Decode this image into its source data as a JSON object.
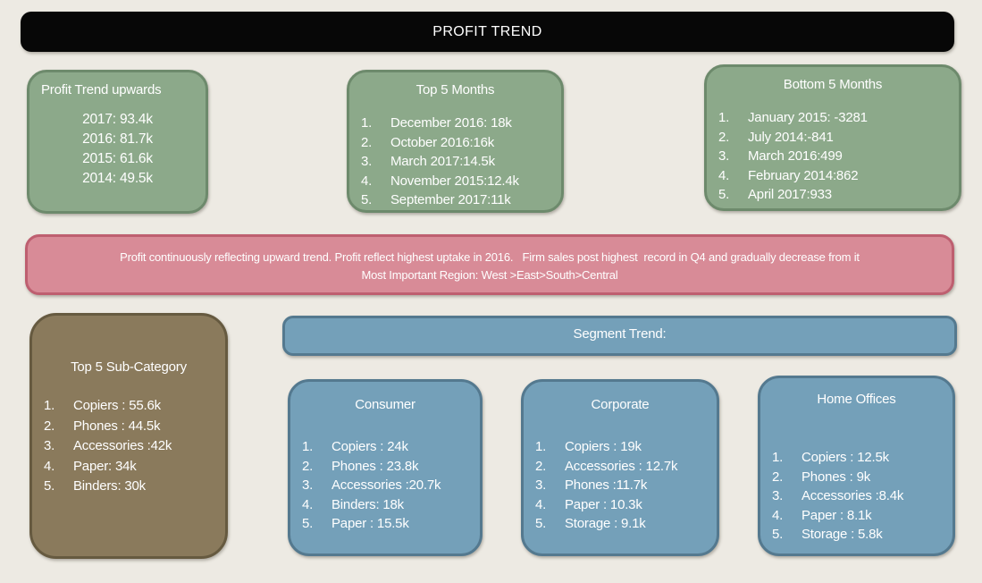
{
  "slide": {
    "title": "PROFIT TREND",
    "yearly_profit": {
      "title": "Profit Trend upwards",
      "lines": [
        "2017: 93.4k",
        "2016: 81.7k",
        "2015: 61.6k",
        "2014: 49.5k"
      ]
    },
    "top_months": {
      "title": "Top 5 Months",
      "items": [
        "December 2016: 18k",
        "October 2016:16k",
        "March 2017:14.5k",
        "November 2015:12.4k",
        "September 2017:11k"
      ]
    },
    "bottom_months": {
      "title": "Bottom 5 Months",
      "items": [
        "January 2015: -3281",
        "July 2014:-841",
        "March 2016:499",
        "February 2014:862",
        "April 2017:933"
      ]
    },
    "summary_banner": {
      "line1": "Profit continuously reflecting upward trend. Profit reflect highest uptake in 2016.   Firm sales post highest  record in Q4 and gradually decrease from it",
      "line2": "Most Important Region: West >East>South>Central"
    },
    "top_subcategory": {
      "title": "Top 5 Sub-Category",
      "items": [
        "Copiers : 55.6k",
        "Phones : 44.5k",
        "Accessories :42k",
        "Paper: 34k",
        "Binders: 30k"
      ]
    },
    "segment_trend": {
      "title": "Segment Trend:"
    },
    "segments": [
      {
        "title": "Consumer",
        "items": [
          "Copiers : 24k",
          "Phones : 23.8k",
          "Accessories :20.7k",
          "Binders: 18k",
          "Paper : 15.5k"
        ]
      },
      {
        "title": "Corporate",
        "items": [
          "Copiers : 19k",
          "Accessories : 12.7k",
          "Phones :11.7k",
          "Paper : 10.3k",
          "Storage : 9.1k"
        ]
      },
      {
        "title": "Home Offices",
        "items": [
          "Copiers : 12.5k",
          "Phones : 9k",
          "Accessories :8.4k",
          "Paper : 8.1k",
          "Storage : 5.8k"
        ]
      }
    ]
  },
  "colors": {
    "background": "#edeae3",
    "title_bar": "#070707",
    "green_fill": "#8ca98a",
    "green_border": "#6d8a6c",
    "pink_fill": "#d88b97",
    "pink_border": "#be5f70",
    "brown_fill": "#8a7a5c",
    "brown_border": "#665a40",
    "blue_fill": "#74a0b9",
    "blue_border": "#54798f",
    "text": "#ffffff"
  }
}
